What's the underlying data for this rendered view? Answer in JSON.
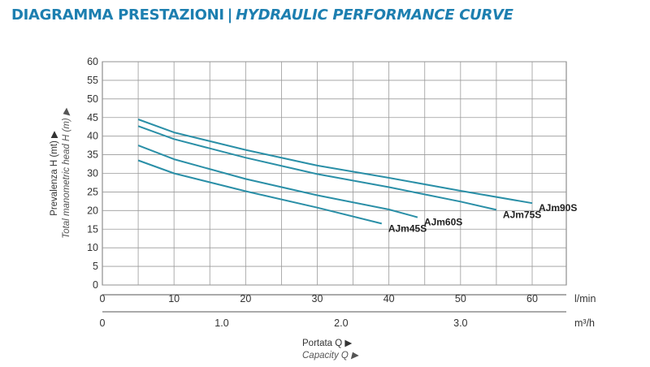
{
  "header": {
    "title_it": "DIAGRAMMA PRESTAZIONI",
    "separator": "|",
    "title_en": "HYDRAULIC PERFORMANCE CURVE"
  },
  "colors": {
    "header": "#1d7fb0",
    "curve": "#2a8fa7",
    "grid": "#9a9a9a",
    "text": "#333333"
  },
  "chart_data": {
    "type": "line",
    "title": "",
    "ylabel": "Prevalenza H (mt) ▶",
    "ylabel_en": "Total manometric head H (m) ▶",
    "xlabel": "Portata Q ▶",
    "xlabel_en": "Capacity Q ▶",
    "ylim": [
      0,
      60
    ],
    "yticks": [
      0,
      5,
      10,
      15,
      20,
      25,
      30,
      35,
      40,
      45,
      50,
      55,
      60
    ],
    "xlim": [
      0,
      66
    ],
    "x_unit": "l/min",
    "xticks": [
      0,
      10,
      20,
      30,
      40,
      50,
      60
    ],
    "x2_unit": "m³/h",
    "x2_ticks": [
      {
        "label": "0",
        "lpm": 0
      },
      {
        "label": "1.0",
        "lpm": 16.67
      },
      {
        "label": "2.0",
        "lpm": 33.33
      },
      {
        "label": "3.0",
        "lpm": 50
      }
    ],
    "grid": true,
    "series": [
      {
        "name": "AJm90S",
        "x": [
          5,
          10,
          20,
          30,
          40,
          50,
          60
        ],
        "y": [
          44.5,
          41,
          36.3,
          32.1,
          28.8,
          25.3,
          22
        ]
      },
      {
        "name": "AJm75S",
        "x": [
          5,
          10,
          20,
          30,
          40,
          50,
          55
        ],
        "y": [
          42.7,
          39.2,
          34.2,
          29.8,
          26.3,
          22.4,
          20.2
        ]
      },
      {
        "name": "AJm60S",
        "x": [
          5,
          10,
          20,
          30,
          40,
          44
        ],
        "y": [
          37.5,
          33.8,
          28.5,
          24.1,
          20.3,
          18.2
        ]
      },
      {
        "name": "AJm45S",
        "x": [
          5,
          10,
          20,
          30,
          39
        ],
        "y": [
          33.5,
          30,
          25.2,
          20.8,
          16.5
        ]
      }
    ]
  }
}
